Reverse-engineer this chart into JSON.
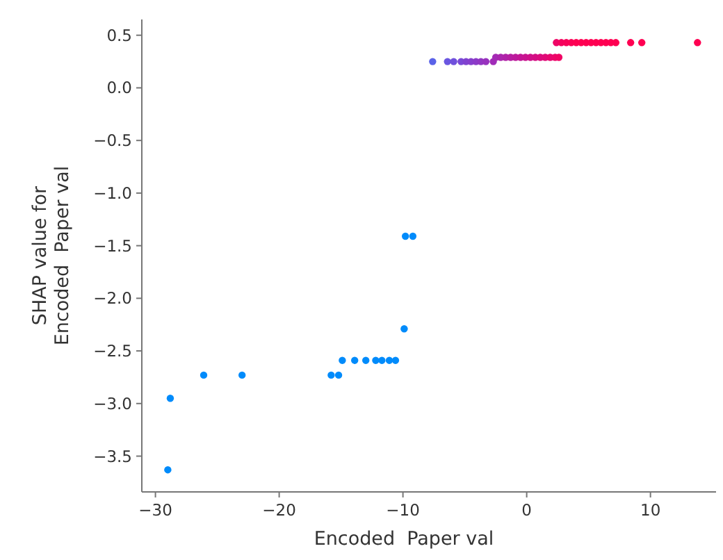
{
  "chart_data": {
    "type": "scatter",
    "xlabel": "Encoded  Paper val",
    "ylabel": "SHAP value for\nEncoded  Paper val",
    "marker": "circle",
    "grid": false,
    "xlim": [
      -31.1,
      15.3
    ],
    "ylim": [
      -3.84,
      0.65
    ],
    "xticks": [
      {
        "value": -30,
        "label": "−30"
      },
      {
        "value": -20,
        "label": "−20"
      },
      {
        "value": -10,
        "label": "−10"
      },
      0,
      10
    ],
    "yticks": [
      {
        "value": -3.5,
        "label": "−3.5"
      },
      {
        "value": -3.0,
        "label": "−3.0"
      },
      {
        "value": -2.5,
        "label": "−2.5"
      },
      {
        "value": -2.0,
        "label": "−2.0"
      },
      {
        "value": -1.5,
        "label": "−1.5"
      },
      {
        "value": -1.0,
        "label": "−1.0"
      },
      {
        "value": -0.5,
        "label": "−0.5"
      },
      {
        "value": 0.0,
        "label": "0.0"
      },
      {
        "value": 0.5,
        "label": "0.5"
      }
    ],
    "series": [
      {
        "x": [
          -29.0,
          -28.8,
          -26.1,
          -23.0,
          -15.8,
          -15.2,
          -14.9,
          -13.9,
          -13.0,
          -12.2,
          -11.7,
          -11.1,
          -10.6,
          -9.9,
          -9.8,
          -9.2,
          -7.6,
          -6.4,
          -5.9,
          -5.3,
          -4.9,
          -4.5,
          -4.1,
          -3.7,
          -3.3,
          -2.7,
          -2.5,
          -2.1,
          -1.7,
          -1.3,
          -0.9,
          -0.5,
          -0.1,
          0.3,
          0.7,
          1.1,
          1.5,
          1.9,
          2.3,
          2.6,
          2.4,
          2.8,
          3.2,
          3.6,
          4.0,
          4.4,
          4.8,
          5.2,
          5.6,
          6.0,
          6.4,
          6.8,
          7.2,
          8.4,
          9.3,
          13.8
        ],
        "values": [
          -3.63,
          -2.95,
          -2.73,
          -2.73,
          -2.73,
          -2.73,
          -2.59,
          -2.59,
          -2.59,
          -2.59,
          -2.59,
          -2.59,
          -2.59,
          -2.29,
          -1.41,
          -1.41,
          0.25,
          0.25,
          0.25,
          0.25,
          0.25,
          0.25,
          0.25,
          0.25,
          0.25,
          0.25,
          0.29,
          0.29,
          0.29,
          0.29,
          0.29,
          0.29,
          0.29,
          0.29,
          0.29,
          0.29,
          0.29,
          0.29,
          0.29,
          0.29,
          0.43,
          0.43,
          0.43,
          0.43,
          0.43,
          0.43,
          0.43,
          0.43,
          0.43,
          0.43,
          0.43,
          0.43,
          0.43,
          0.43,
          0.43,
          0.43
        ],
        "colors": [
          "#008bfb",
          "#008bfb",
          "#008bfb",
          "#008bfb",
          "#008bfb",
          "#008bfb",
          "#008bfb",
          "#008bfb",
          "#008bfb",
          "#008bfb",
          "#008bfb",
          "#008bfb",
          "#008bfb",
          "#008bfb",
          "#008bfb",
          "#008bfb",
          "#5a62e8",
          "#6a56e0",
          "#7050dc",
          "#7a48d6",
          "#8042d0",
          "#863ecc",
          "#8c3ac8",
          "#9236c2",
          "#9832be",
          "#a02cb8",
          "#a42ab4",
          "#aa26ae",
          "#b022a8",
          "#b61ea2",
          "#bc1a9c",
          "#c21696",
          "#c81490",
          "#ce118a",
          "#d40e84",
          "#da0c7e",
          "#e00a78",
          "#e60870",
          "#ec066a",
          "#f00464",
          "#ee0566",
          "#f4035e",
          "#f8025a",
          "#fb0156",
          "#ff0052",
          "#ff0052",
          "#ff0052",
          "#ff0052",
          "#ff0052",
          "#ff0052",
          "#ff0052",
          "#ff0052",
          "#ff0052",
          "#ff0052",
          "#ff0052",
          "#ff0052"
        ]
      }
    ]
  }
}
